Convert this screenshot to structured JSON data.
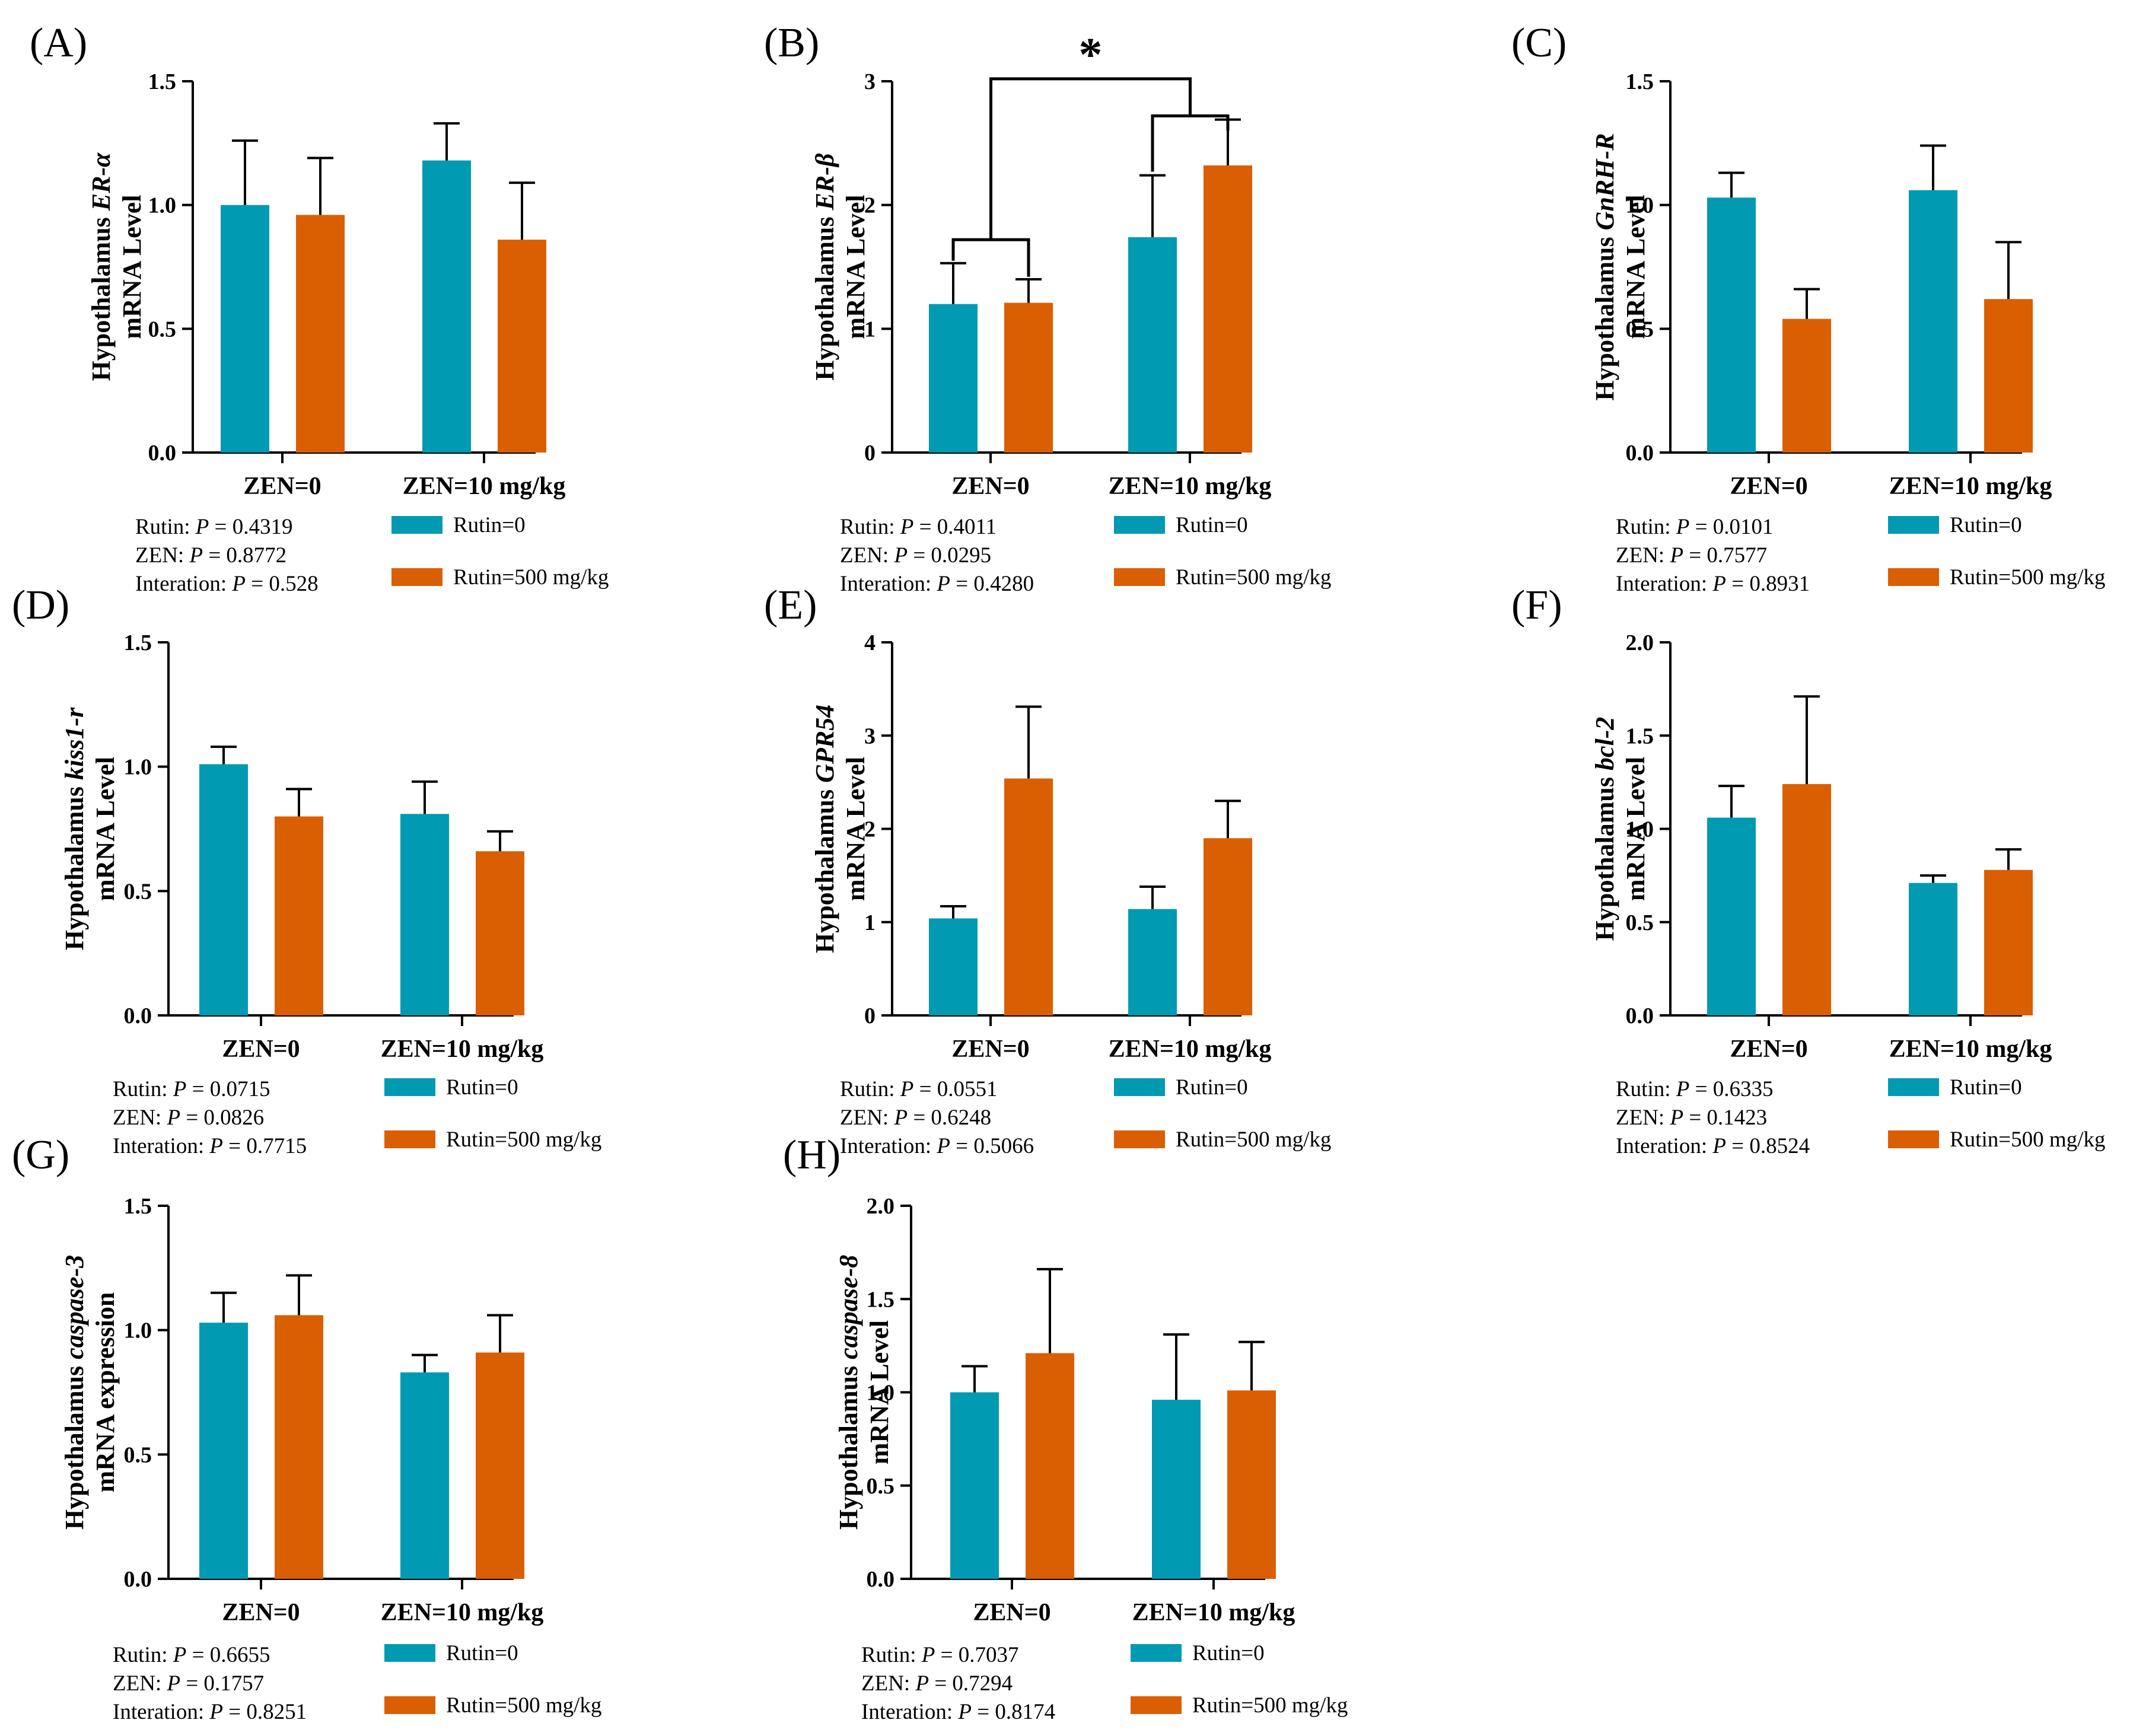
{
  "colors": {
    "rutin0": "#009AB2",
    "rutin500": "#D95F02",
    "axis": "#000000"
  },
  "legend": {
    "rutin0": "Rutin=0",
    "rutin500": "Rutin=500 mg/kg"
  },
  "chart_data": [
    {
      "type": "bar",
      "panel": "(A)",
      "ylabel_prefix": "Hypothalamus ",
      "gene": "ER-α",
      "ylabel_line2": "mRNA Level",
      "categories": [
        "ZEN=0",
        "ZEN=10 mg/kg"
      ],
      "ylim": [
        0,
        1.5
      ],
      "yticks": [
        "0.0",
        "0.5",
        "1.0",
        "1.5"
      ],
      "series": [
        {
          "name": "Rutin=0",
          "values": [
            1.0,
            1.18
          ],
          "errors": [
            0.26,
            0.15
          ]
        },
        {
          "name": "Rutin=500 mg/kg",
          "values": [
            0.96,
            0.86
          ],
          "errors": [
            0.23,
            0.23
          ]
        }
      ],
      "stats": [
        {
          "label": "Rutin: ",
          "p": "P",
          "value": " = 0.4319"
        },
        {
          "label": "ZEN: ",
          "p": "P",
          "value": " = 0.8772"
        },
        {
          "label": "Interation: ",
          "p": "P",
          "value": " = 0.528"
        }
      ]
    },
    {
      "type": "bar",
      "panel": "(B)",
      "ylabel_prefix": "Hypothalamus ",
      "gene": "ER-β",
      "ylabel_line2": "mRNA Level",
      "categories": [
        "ZEN=0",
        "ZEN=10 mg/kg"
      ],
      "ylim": [
        0,
        3
      ],
      "yticks": [
        "0",
        "1",
        "2",
        "3"
      ],
      "series": [
        {
          "name": "Rutin=0",
          "values": [
            1.2,
            1.74
          ],
          "errors": [
            0.33,
            0.5
          ]
        },
        {
          "name": "Rutin=500 mg/kg",
          "values": [
            1.21,
            2.32
          ],
          "errors": [
            0.19,
            0.37
          ]
        }
      ],
      "significance": "*",
      "stats": [
        {
          "label": "Rutin: ",
          "p": "P",
          "value": " = 0.4011"
        },
        {
          "label": "ZEN: ",
          "p": "P",
          "value": " = 0.0295"
        },
        {
          "label": "Interation: ",
          "p": "P",
          "value": " = 0.4280"
        }
      ]
    },
    {
      "type": "bar",
      "panel": "(C)",
      "ylabel_prefix": "Hypothalamus ",
      "gene": "GnRH-R",
      "ylabel_line2": "mRNA Level",
      "categories": [
        "ZEN=0",
        "ZEN=10 mg/kg"
      ],
      "ylim": [
        0,
        1.5
      ],
      "yticks": [
        "0.0",
        "0.5",
        "1.0",
        "1.5"
      ],
      "series": [
        {
          "name": "Rutin=0",
          "values": [
            1.03,
            1.06
          ],
          "errors": [
            0.1,
            0.18
          ]
        },
        {
          "name": "Rutin=500 mg/kg",
          "values": [
            0.54,
            0.62
          ],
          "errors": [
            0.12,
            0.23
          ]
        }
      ],
      "stats": [
        {
          "label": "Rutin: ",
          "p": "P",
          "value": " = 0.0101"
        },
        {
          "label": "ZEN: ",
          "p": "P",
          "value": " = 0.7577"
        },
        {
          "label": "Interation: ",
          "p": "P",
          "value": " = 0.8931"
        }
      ]
    },
    {
      "type": "bar",
      "panel": "(D)",
      "ylabel_prefix": "Hypothalamus ",
      "gene": "kiss1-r",
      "ylabel_line2": "mRNA Level",
      "categories": [
        "ZEN=0",
        "ZEN=10 mg/kg"
      ],
      "ylim": [
        0,
        1.5
      ],
      "yticks": [
        "0.0",
        "0.5",
        "1.0",
        "1.5"
      ],
      "series": [
        {
          "name": "Rutin=0",
          "values": [
            1.01,
            0.81
          ],
          "errors": [
            0.07,
            0.13
          ]
        },
        {
          "name": "Rutin=500 mg/kg",
          "values": [
            0.8,
            0.66
          ],
          "errors": [
            0.11,
            0.08
          ]
        }
      ],
      "stats": [
        {
          "label": "Rutin: ",
          "p": "P",
          "value": " = 0.0715"
        },
        {
          "label": "ZEN: ",
          "p": "P",
          "value": " = 0.0826"
        },
        {
          "label": "Interation: ",
          "p": "P",
          "value": " = 0.7715"
        }
      ]
    },
    {
      "type": "bar",
      "panel": "(E)",
      "ylabel_prefix": "Hypothalamus ",
      "gene": "GPR54",
      "ylabel_line2": "mRNA Level",
      "categories": [
        "ZEN=0",
        "ZEN=10 mg/kg"
      ],
      "ylim": [
        0,
        4
      ],
      "yticks": [
        "0",
        "1",
        "2",
        "3",
        "4"
      ],
      "series": [
        {
          "name": "Rutin=0",
          "values": [
            1.04,
            1.14
          ],
          "errors": [
            0.13,
            0.24
          ]
        },
        {
          "name": "Rutin=500 mg/kg",
          "values": [
            2.54,
            1.9
          ],
          "errors": [
            0.77,
            0.4
          ]
        }
      ],
      "stats": [
        {
          "label": "Rutin: ",
          "p": "P",
          "value": " = 0.0551"
        },
        {
          "label": "ZEN: ",
          "p": "P",
          "value": " = 0.6248"
        },
        {
          "label": "Interation: ",
          "p": "P",
          "value": " = 0.5066"
        }
      ]
    },
    {
      "type": "bar",
      "panel": "(F)",
      "ylabel_prefix": "Hypothalamus ",
      "gene": "bcl-2",
      "ylabel_line2": "mRNA Level",
      "categories": [
        "ZEN=0",
        "ZEN=10 mg/kg"
      ],
      "ylim": [
        0,
        2.0
      ],
      "yticks": [
        "0.0",
        "0.5",
        "1.0",
        "1.5",
        "2.0"
      ],
      "series": [
        {
          "name": "Rutin=0",
          "values": [
            1.06,
            0.71
          ],
          "errors": [
            0.17,
            0.04
          ]
        },
        {
          "name": "Rutin=500 mg/kg",
          "values": [
            1.24,
            0.78
          ],
          "errors": [
            0.47,
            0.11
          ]
        }
      ],
      "stats": [
        {
          "label": "Rutin: ",
          "p": "P",
          "value": " = 0.6335"
        },
        {
          "label": "ZEN: ",
          "p": "P",
          "value": " = 0.1423"
        },
        {
          "label": "Interation: ",
          "p": "P",
          "value": " = 0.8524"
        }
      ]
    },
    {
      "type": "bar",
      "panel": "(G)",
      "ylabel_prefix": "Hypothalamus ",
      "gene": "caspase-3",
      "ylabel_line2": "mRNA expression",
      "categories": [
        "ZEN=0",
        "ZEN=10 mg/kg"
      ],
      "ylim": [
        0,
        1.5
      ],
      "yticks": [
        "0.0",
        "0.5",
        "1.0",
        "1.5"
      ],
      "series": [
        {
          "name": "Rutin=0",
          "values": [
            1.03,
            0.83
          ],
          "errors": [
            0.12,
            0.07
          ]
        },
        {
          "name": "Rutin=500 mg/kg",
          "values": [
            1.06,
            0.91
          ],
          "errors": [
            0.16,
            0.15
          ]
        }
      ],
      "stats": [
        {
          "label": "Rutin: ",
          "p": "P",
          "value": " = 0.6655"
        },
        {
          "label": "ZEN: ",
          "p": "P",
          "value": " = 0.1757"
        },
        {
          "label": "Interation: ",
          "p": "P",
          "value": " = 0.8251"
        }
      ]
    },
    {
      "type": "bar",
      "panel": "(H)",
      "ylabel_prefix": "Hypothalamus ",
      "gene": "caspase-8",
      "ylabel_line2": "mRNA Level",
      "categories": [
        "ZEN=0",
        "ZEN=10 mg/kg"
      ],
      "ylim": [
        0,
        2.0
      ],
      "yticks": [
        "0.0",
        "0.5",
        "1.0",
        "1.5",
        "2.0"
      ],
      "series": [
        {
          "name": "Rutin=0",
          "values": [
            1.0,
            0.96
          ],
          "errors": [
            0.14,
            0.35
          ]
        },
        {
          "name": "Rutin=500 mg/kg",
          "values": [
            1.21,
            1.01
          ],
          "errors": [
            0.45,
            0.26
          ]
        }
      ],
      "stats": [
        {
          "label": "Rutin: ",
          "p": "P",
          "value": " = 0.7037"
        },
        {
          "label": "ZEN: ",
          "p": "P",
          "value": " = 0.7294"
        },
        {
          "label": "Interation: ",
          "p": "P",
          "value": " = 0.8174"
        }
      ]
    }
  ]
}
